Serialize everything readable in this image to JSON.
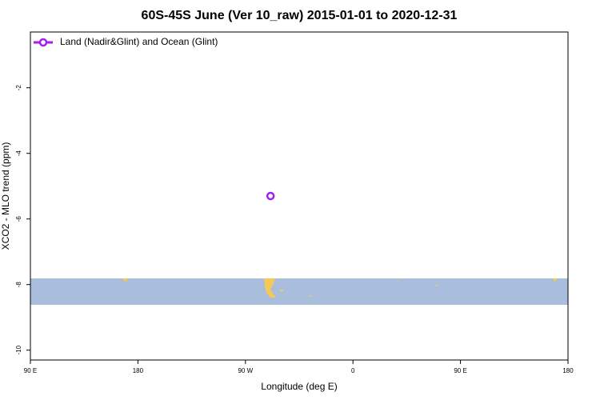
{
  "chart_data": {
    "type": "scatter",
    "title": "60S-45S June (Ver 10_raw)   2015-01-01 to 2020-12-31",
    "x_label": "Longitude (deg E)",
    "y_label": "XCO2 - MLO trend (ppm)",
    "series": [
      {
        "name": "Land (Nadir&Glint) and Ocean (Glint)",
        "color": "#a020f0",
        "x": [
          291
        ],
        "values": [
          -5.3
        ]
      }
    ],
    "xlim": [
      90,
      540
    ],
    "xticks": [
      {
        "value": 90,
        "label": "90 E"
      },
      180,
      {
        "value": 270,
        "label": "90 W"
      },
      {
        "value": 360,
        "label": "0"
      },
      {
        "value": 450,
        "label": "90 E"
      },
      {
        "value": 540,
        "label": "180"
      }
    ],
    "ylim": [
      -10.3,
      -0.3
    ],
    "yticks": [
      -2,
      -4,
      -6,
      -8,
      -10
    ],
    "legend": "upper left"
  }
}
